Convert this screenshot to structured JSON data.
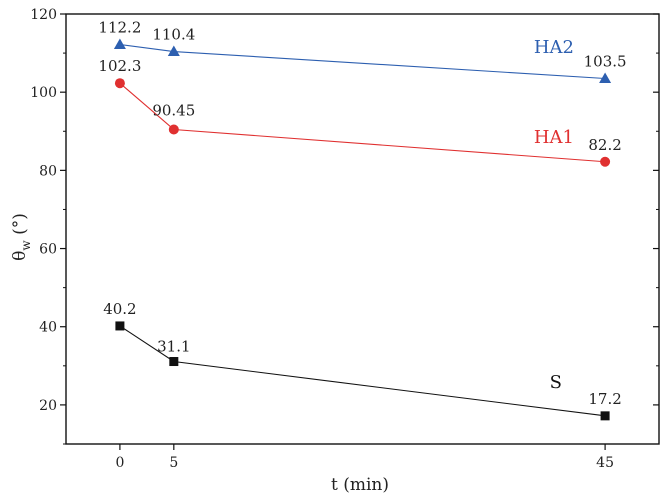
{
  "chart_data": {
    "type": "line",
    "xlabel": "t (min)",
    "ylabel": {
      "main": "θ",
      "sub": "w",
      "unit": " (°)"
    },
    "x": [
      0,
      5,
      45
    ],
    "xlim": [
      -5,
      50
    ],
    "ylim": [
      10,
      120
    ],
    "x_ticks": [
      0,
      5,
      45
    ],
    "y_ticks": [
      20,
      40,
      60,
      80,
      100,
      120
    ],
    "grid": false,
    "series": [
      {
        "name": "HA2",
        "marker": "triangle",
        "color": "#2d5fb0",
        "values": [
          112.2,
          110.4,
          103.5
        ],
        "labels": [
          "112.2",
          "110.4",
          "103.5"
        ]
      },
      {
        "name": "HA1",
        "marker": "circle",
        "color": "#e03030",
        "values": [
          102.3,
          90.45,
          82.2
        ],
        "labels": [
          "102.3",
          "90.45",
          "82.2"
        ]
      },
      {
        "name": "S",
        "marker": "square",
        "color": "#111111",
        "values": [
          40.2,
          31.1,
          17.2
        ],
        "labels": [
          "40.2",
          "31.1",
          "17.2"
        ]
      }
    ]
  }
}
